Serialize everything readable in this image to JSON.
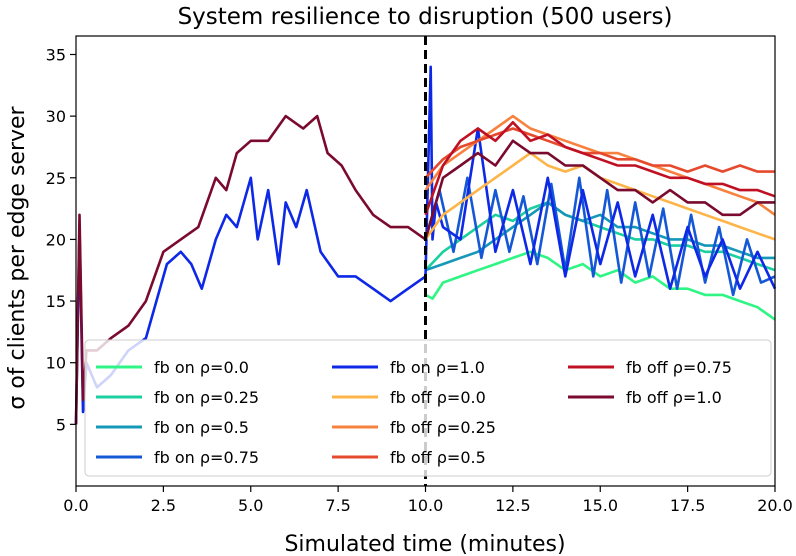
{
  "chart_data": {
    "type": "line",
    "title": "System resilience to disruption (500 users)",
    "xlabel": "Simulated time (minutes)",
    "ylabel": "σ of clients per edge server",
    "xlim": [
      0,
      20
    ],
    "ylim": [
      0,
      36.5
    ],
    "x_ticks": [
      {
        "value": 0,
        "label": "0.0"
      },
      {
        "value": 2.5,
        "label": "2.5"
      },
      {
        "value": 5,
        "label": "5.0"
      },
      {
        "value": 7.5,
        "label": "7.5"
      },
      {
        "value": 10,
        "label": "10.0"
      },
      {
        "value": 12.5,
        "label": "12.5"
      },
      {
        "value": 15,
        "label": "15.0"
      },
      {
        "value": 17.5,
        "label": "17.5"
      },
      {
        "value": 20,
        "label": "20.0"
      }
    ],
    "y_ticks": [
      {
        "value": 5,
        "label": "5"
      },
      {
        "value": 10,
        "label": "10"
      },
      {
        "value": 15,
        "label": "15"
      },
      {
        "value": 20,
        "label": "20"
      },
      {
        "value": 25,
        "label": "25"
      },
      {
        "value": 30,
        "label": "30"
      },
      {
        "value": 35,
        "label": "35"
      }
    ],
    "grid": false,
    "legend_position": "lower-center",
    "disruption_line_x": 10,
    "series": [
      {
        "name": "fb on ρ=0.0",
        "color": "#2ef584",
        "x": [
          10.0,
          10.2,
          10.5,
          11.0,
          11.5,
          12.0,
          12.5,
          13.0,
          13.5,
          14.0,
          14.5,
          15.0,
          15.5,
          16.0,
          16.5,
          17.0,
          17.5,
          18.0,
          18.5,
          19.0,
          19.5,
          20.0
        ],
        "y": [
          15.5,
          15.2,
          16.5,
          17.0,
          17.5,
          18.0,
          18.5,
          19.0,
          18.5,
          17.5,
          18.0,
          17.0,
          17.5,
          16.5,
          17.0,
          16.0,
          16.0,
          15.5,
          15.5,
          15.0,
          14.5,
          13.5
        ]
      },
      {
        "name": "fb on ρ=0.25",
        "color": "#1ccf9e",
        "x": [
          10.0,
          10.5,
          11.0,
          11.5,
          12.0,
          12.5,
          13.0,
          13.5,
          14.0,
          14.5,
          15.0,
          15.5,
          16.0,
          16.5,
          17.0,
          17.5,
          18.0,
          18.5,
          19.0,
          19.5,
          20.0
        ],
        "y": [
          17.5,
          19.0,
          20.0,
          21.0,
          22.0,
          21.5,
          22.5,
          23.0,
          22.0,
          21.5,
          21.0,
          20.5,
          20.0,
          20.0,
          19.5,
          19.5,
          19.0,
          19.0,
          18.5,
          18.0,
          17.5
        ]
      },
      {
        "name": "fb on ρ=0.5",
        "color": "#1598b8",
        "x": [
          10.0,
          10.5,
          11.0,
          11.5,
          12.0,
          12.5,
          13.0,
          13.5,
          14.0,
          14.5,
          15.0,
          15.5,
          16.0,
          16.5,
          17.0,
          17.5,
          18.0,
          18.5,
          19.0,
          19.5,
          20.0
        ],
        "y": [
          17.5,
          18.0,
          18.5,
          19.0,
          20.0,
          21.0,
          22.0,
          23.0,
          22.0,
          21.5,
          22.0,
          21.0,
          21.0,
          20.5,
          20.0,
          20.0,
          19.5,
          19.5,
          19.0,
          18.5,
          18.5
        ]
      },
      {
        "name": "fb on ρ=0.75",
        "color": "#1558d6",
        "x": [
          10.0,
          10.4,
          10.8,
          11.2,
          11.6,
          12.0,
          12.4,
          12.8,
          13.2,
          13.6,
          14.0,
          14.4,
          14.8,
          15.2,
          15.6,
          16.0,
          16.4,
          16.8,
          17.2,
          17.6,
          18.0,
          18.4,
          18.8,
          19.2,
          19.6,
          20.0
        ],
        "y": [
          20.0,
          24.0,
          19.0,
          25.0,
          18.5,
          24.0,
          19.0,
          23.5,
          18.0,
          24.5,
          17.5,
          25.0,
          17.0,
          24.0,
          16.5,
          23.0,
          17.0,
          22.5,
          16.0,
          22.0,
          16.5,
          21.0,
          15.5,
          20.0,
          16.5,
          17.0
        ]
      },
      {
        "name": "fb on ρ=1.0",
        "color": "#0d28e6",
        "x": [
          0.0,
          0.1,
          0.2,
          0.3,
          0.6,
          1.0,
          1.5,
          2.0,
          2.3,
          2.6,
          3.0,
          3.3,
          3.6,
          4.0,
          4.3,
          4.6,
          5.0,
          5.2,
          5.5,
          5.8,
          6.0,
          6.3,
          6.6,
          7.0,
          7.5,
          8.0,
          8.5,
          9.0,
          9.5,
          10.0,
          10.15,
          10.2,
          10.3,
          10.5,
          11.0,
          11.5,
          12.0,
          12.5,
          13.0,
          13.5,
          14.0,
          14.5,
          15.0,
          15.5,
          16.0,
          16.5,
          17.0,
          17.5,
          18.0,
          18.5,
          19.0,
          19.5,
          20.0
        ],
        "y": [
          5,
          21,
          6,
          10,
          8,
          9,
          11,
          12,
          15,
          18,
          19,
          18,
          16,
          20,
          22,
          21,
          25,
          20,
          24,
          18,
          23,
          21,
          24,
          19,
          17,
          17,
          16,
          15,
          16,
          17,
          34,
          20,
          23,
          21,
          20,
          29,
          19,
          24,
          18,
          25,
          17,
          24,
          18,
          23,
          17,
          22,
          16,
          21,
          17,
          20,
          16,
          19,
          16
        ]
      },
      {
        "name": "fb off ρ=0.0",
        "color": "#fdb54a",
        "x": [
          10.0,
          10.5,
          11.0,
          11.5,
          12.0,
          12.5,
          13.0,
          13.5,
          14.0,
          14.5,
          15.0,
          15.5,
          16.0,
          16.5,
          17.0,
          17.5,
          18.0,
          18.5,
          19.0,
          19.5,
          20.0
        ],
        "y": [
          20.0,
          22.0,
          23.0,
          24.0,
          25.0,
          26.0,
          27.0,
          26.0,
          25.5,
          26.0,
          25.0,
          24.5,
          24.0,
          23.5,
          23.0,
          22.5,
          22.0,
          21.5,
          21.0,
          20.5,
          20.0
        ]
      },
      {
        "name": "fb off ρ=0.25",
        "color": "#f7823f",
        "x": [
          10.0,
          10.5,
          11.0,
          11.5,
          12.0,
          12.5,
          13.0,
          13.5,
          14.0,
          14.5,
          15.0,
          15.5,
          16.0,
          16.5,
          17.0,
          17.5,
          18.0,
          18.5,
          19.0,
          19.5,
          20.0
        ],
        "y": [
          24.0,
          26.0,
          27.0,
          28.0,
          29.0,
          30.0,
          29.0,
          28.5,
          28.0,
          27.5,
          27.0,
          27.0,
          26.5,
          26.0,
          25.5,
          25.0,
          24.5,
          24.0,
          23.5,
          23.0,
          22.0
        ]
      },
      {
        "name": "fb off ρ=0.5",
        "color": "#e64a2e",
        "x": [
          10.0,
          10.5,
          11.0,
          11.5,
          12.0,
          12.5,
          13.0,
          13.5,
          14.0,
          14.5,
          15.0,
          15.5,
          16.0,
          16.5,
          17.0,
          17.5,
          18.0,
          18.5,
          19.0,
          19.5,
          20.0
        ],
        "y": [
          25.0,
          26.5,
          27.5,
          28.0,
          28.5,
          29.0,
          28.5,
          28.0,
          27.5,
          27.0,
          27.0,
          26.5,
          26.5,
          26.0,
          26.0,
          25.5,
          26.0,
          25.5,
          26.0,
          25.5,
          25.5
        ]
      },
      {
        "name": "fb off ρ=0.75",
        "color": "#bf1024",
        "x": [
          10.0,
          10.5,
          11.0,
          11.5,
          12.0,
          12.5,
          13.0,
          13.5,
          14.0,
          14.5,
          15.0,
          15.5,
          16.0,
          16.5,
          17.0,
          17.5,
          18.0,
          18.5,
          19.0,
          19.5,
          20.0
        ],
        "y": [
          22.0,
          26.0,
          28.0,
          29.0,
          28.0,
          29.5,
          28.0,
          28.5,
          27.5,
          27.0,
          26.5,
          26.0,
          26.0,
          25.5,
          25.0,
          25.0,
          24.5,
          24.5,
          24.0,
          24.0,
          23.5
        ]
      },
      {
        "name": "fb off ρ=1.0",
        "color": "#7a0a2e",
        "x": [
          0.0,
          0.1,
          0.2,
          0.3,
          0.6,
          1.0,
          1.5,
          2.0,
          2.5,
          3.0,
          3.5,
          4.0,
          4.3,
          4.6,
          5.0,
          5.5,
          6.0,
          6.5,
          6.9,
          7.2,
          7.6,
          8.0,
          8.5,
          9.0,
          9.5,
          10.0,
          10.5,
          11.0,
          11.5,
          12.0,
          12.5,
          13.0,
          13.5,
          14.0,
          14.5,
          15.0,
          15.5,
          16.0,
          16.5,
          17.0,
          17.5,
          18.0,
          18.5,
          19.0,
          19.5,
          20.0
        ],
        "y": [
          5,
          22,
          7,
          11,
          11,
          12,
          13,
          15,
          19,
          20,
          21,
          25,
          24,
          27,
          28,
          28,
          30,
          29,
          30,
          27,
          26,
          24,
          22,
          21,
          21,
          20,
          25,
          26,
          27,
          26,
          28,
          27,
          27,
          26,
          26,
          25,
          24,
          24,
          23,
          24,
          23,
          23,
          22,
          22,
          23,
          23
        ]
      }
    ]
  }
}
